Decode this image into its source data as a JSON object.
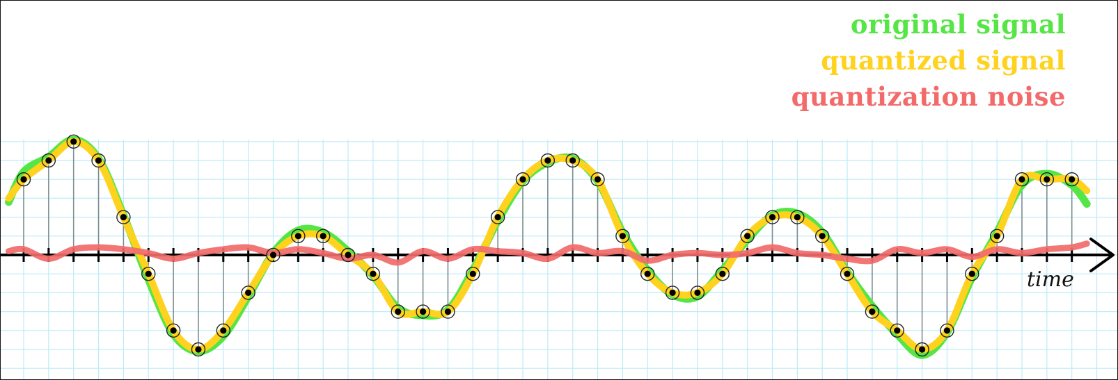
{
  "legend": {
    "original": "original signal",
    "quantized": "quantized signal",
    "noise": "quantization noise"
  },
  "axis": {
    "label": "time"
  },
  "colors": {
    "original": "#55e646",
    "quantized": "#ffd21e",
    "noise": "#f26a6a",
    "grid": "#bdebf7",
    "axis": "#000000",
    "stem": "#7a8f93"
  },
  "chart_data": {
    "type": "line",
    "grid": true,
    "x_range": [
      0,
      43
    ],
    "y_range": [
      -6,
      6
    ],
    "samples_x": [
      0,
      1,
      2,
      3,
      4,
      5,
      6,
      7,
      8,
      9,
      10,
      11,
      12,
      13,
      14,
      15,
      16,
      17,
      18,
      19,
      20,
      21,
      22,
      23,
      24,
      25,
      26,
      27,
      28,
      29,
      30,
      31,
      32,
      33,
      34,
      35,
      36,
      37,
      38,
      39,
      40,
      41,
      42
    ],
    "samples_y": [
      4,
      5,
      6,
      5,
      2,
      -1,
      -4,
      -5,
      -4,
      -2,
      0,
      1,
      1,
      0,
      -1,
      -3,
      -3,
      -3,
      -1,
      2,
      4,
      5,
      5,
      4,
      1,
      -1,
      -2,
      -2,
      -1,
      1,
      2,
      2,
      1,
      -1,
      -3,
      -4,
      -5,
      -4,
      -1,
      1,
      4,
      4,
      4
    ],
    "original_y": [
      4.4,
      5.2,
      6.1,
      5.1,
      2.1,
      -1.3,
      -4.2,
      -5.1,
      -4.3,
      -2.2,
      0.1,
      1.3,
      1.2,
      0.2,
      -1.1,
      -2.8,
      -3.2,
      -2.9,
      -0.8,
      1.8,
      3.9,
      4.9,
      5.1,
      3.9,
      1.2,
      -0.8,
      -2.1,
      -2.2,
      -0.8,
      0.8,
      2.1,
      2.2,
      1.2,
      -0.9,
      -2.7,
      -4.2,
      -5.3,
      -4.1,
      -1.2,
      1.2,
      3.7,
      4.3,
      3.7
    ],
    "noise_y": [
      0.3,
      -0.2,
      0.3,
      0.4,
      0.3,
      0.1,
      -0.2,
      0.1,
      0.3,
      0.4,
      0.1,
      0.3,
      0.1,
      -0.2,
      0.0,
      -0.4,
      0.2,
      -0.2,
      0.3,
      0.2,
      0.1,
      -0.2,
      0.4,
      0.1,
      0.2,
      -0.3,
      0.0,
      0.1,
      0.0,
      0.1,
      0.4,
      0.1,
      0.0,
      -0.2,
      -0.3,
      0.3,
      0.1,
      0.3,
      -0.1,
      0.3,
      0.1,
      0.3,
      0.4
    ]
  }
}
